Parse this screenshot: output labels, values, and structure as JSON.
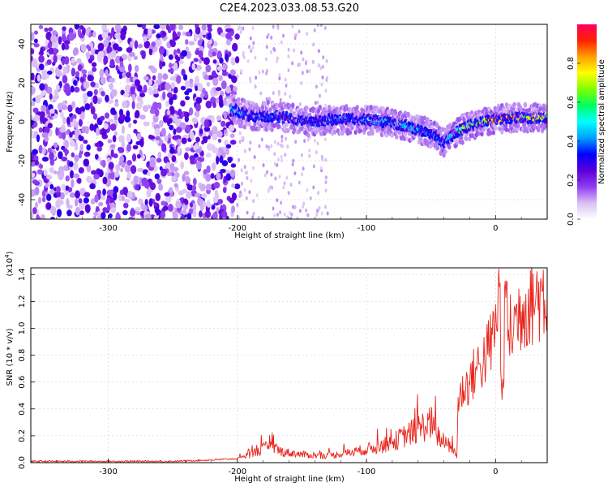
{
  "figure": {
    "title": "C2E4.2023.033.08.53.G20"
  },
  "chart_data": [
    {
      "type": "heatmap",
      "xlabel": "Height of straight line (km)",
      "ylabel": "Frequency (Hz)",
      "xlim": [
        -360,
        40
      ],
      "ylim": [
        -50,
        50
      ],
      "xticks": [
        -300,
        -200,
        -100,
        0
      ],
      "yticks": [
        -40,
        -20,
        0,
        20,
        40
      ],
      "grid": true,
      "colorbar": {
        "label": "Normalized spectral amplitude",
        "range": [
          0.0,
          1.0
        ],
        "ticks": [
          "0.0",
          "0.2",
          "0.4",
          "0.6",
          "0.8"
        ],
        "colormap": "rainbow",
        "stops": [
          "#ffffff",
          "#d9bff5",
          "#8f3cf0",
          "#5a00d8",
          "#0000ff",
          "#00a0ff",
          "#00ffff",
          "#00ff60",
          "#80ff00",
          "#ffff00",
          "#ffa000",
          "#ff2000",
          "#ff0060"
        ]
      },
      "noise_region_x": [
        -360,
        -200
      ],
      "ridge": {
        "x": [
          -205,
          -190,
          -175,
          -160,
          -145,
          -130,
          -115,
          -100,
          -85,
          -70,
          -60,
          -50,
          -40,
          -30,
          -20,
          -10,
          0,
          10,
          20,
          30,
          40
        ],
        "frequency": [
          6,
          3,
          3,
          2,
          0,
          1,
          1,
          1,
          0,
          -2,
          -4,
          -6,
          -11,
          -5,
          -2,
          0,
          1,
          2,
          2,
          2,
          2
        ],
        "amplitude": [
          0.5,
          0.35,
          0.35,
          0.3,
          0.3,
          0.35,
          0.4,
          0.45,
          0.45,
          0.45,
          0.45,
          0.45,
          0.35,
          0.6,
          0.7,
          0.75,
          0.85,
          0.9,
          0.85,
          0.8,
          0.75
        ]
      }
    },
    {
      "type": "line",
      "xlabel": "Height of straight line (km)",
      "ylabel": "SNR (10 * v/v)",
      "multiplier": "(x10",
      "multiplier_exp": "4",
      "multiplier_close": ")",
      "xlim": [
        -360,
        40
      ],
      "ylim": [
        0,
        1.45
      ],
      "xticks": [
        -300,
        -200,
        -100,
        0
      ],
      "yticks": [
        "0.0",
        "0.2",
        "0.4",
        "0.6",
        "0.8",
        "1.0",
        "1.2",
        "1.4"
      ],
      "grid": true,
      "color": "#e8241c",
      "series": [
        {
          "x": [
            -360,
            -300,
            -250,
            -220,
            -200,
            -185,
            -175,
            -165,
            -150,
            -130,
            -110,
            -100,
            -90,
            -80,
            -70,
            -60,
            -50,
            -45,
            -40,
            -35,
            -30,
            -29,
            -25,
            -20,
            -15,
            -10,
            -5,
            0,
            3,
            5,
            8,
            10,
            15,
            20,
            25,
            30,
            35,
            40
          ],
          "y": [
            0.01,
            0.01,
            0.01,
            0.02,
            0.03,
            0.08,
            0.12,
            0.08,
            0.06,
            0.05,
            0.08,
            0.1,
            0.12,
            0.15,
            0.2,
            0.25,
            0.3,
            0.2,
            0.15,
            0.12,
            0.05,
            0.45,
            0.55,
            0.6,
            0.7,
            0.75,
            0.85,
            1.0,
            1.35,
            0.4,
            1.3,
            0.95,
            1.05,
            1.15,
            1.2,
            1.22,
            1.25,
            1.26
          ]
        }
      ]
    }
  ]
}
